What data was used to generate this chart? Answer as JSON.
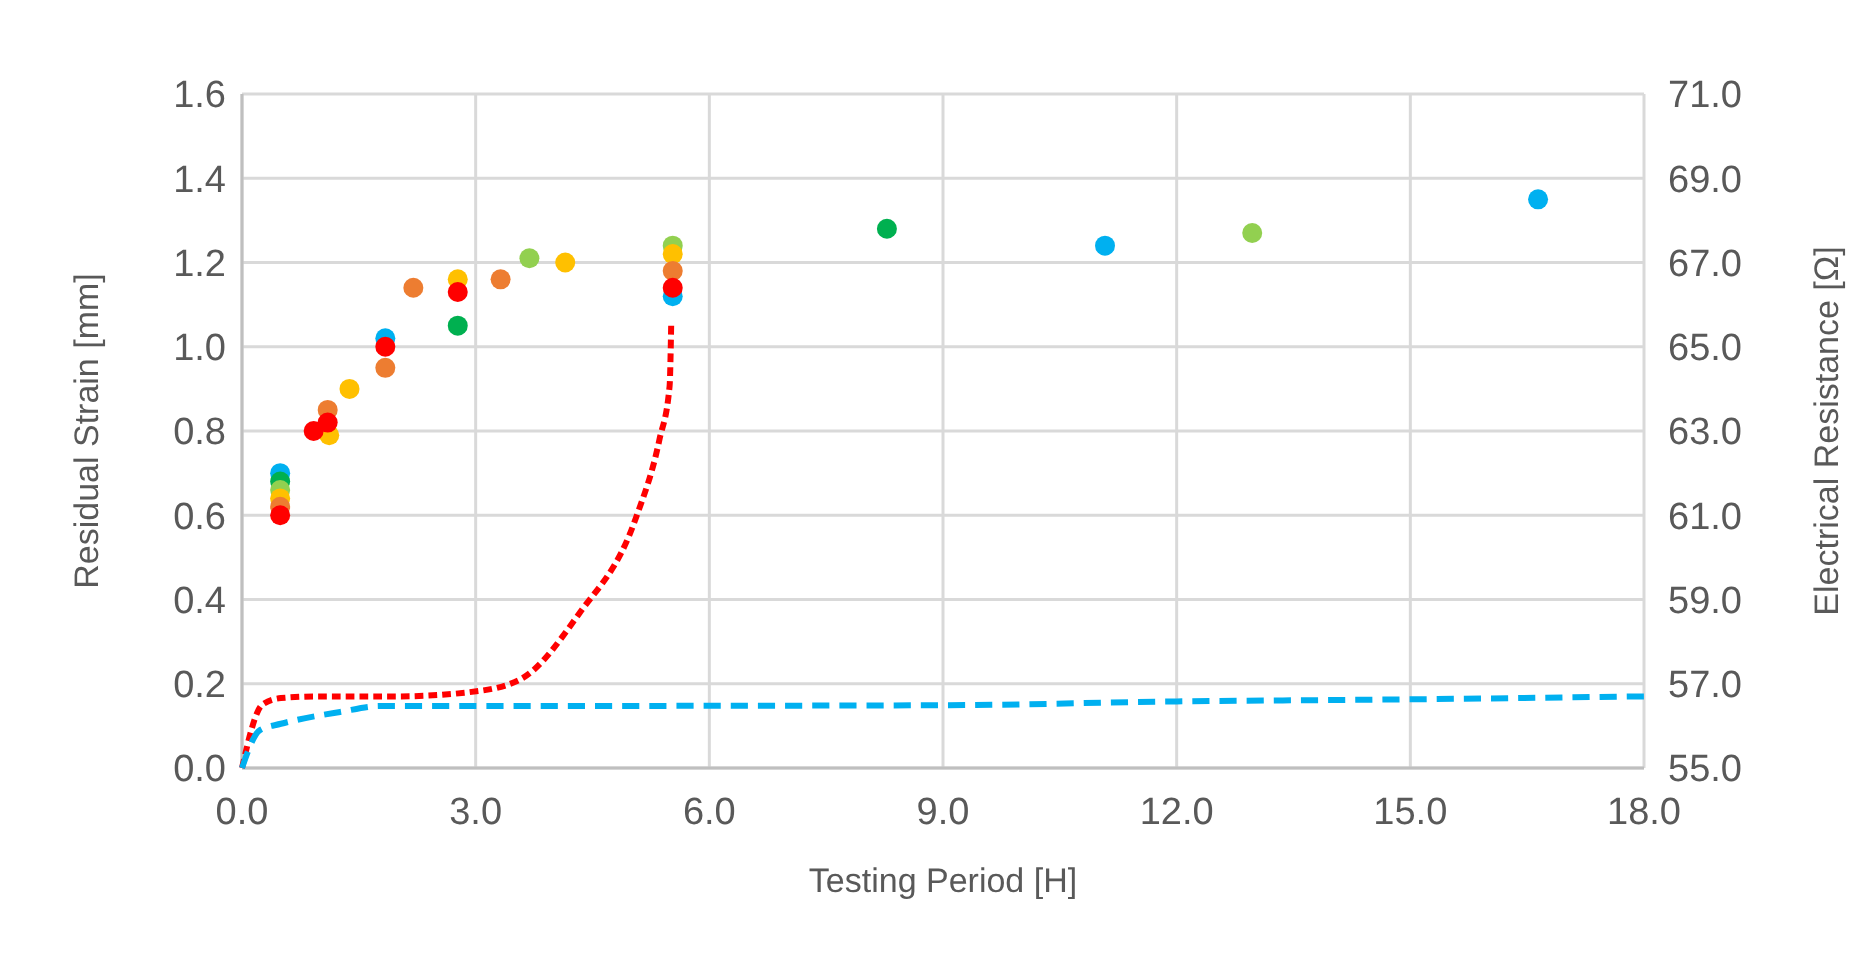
{
  "chart_data": {
    "type": "scatter",
    "xlabel": "Testing Period [H]",
    "ylabel": "Residual Strain [mm]",
    "y2label": "Electrical Resistance [Ω]",
    "xlim": [
      0,
      18
    ],
    "xticks": [
      {
        "value": 0,
        "label": "0.0"
      },
      {
        "value": 3,
        "label": "3.0"
      },
      {
        "value": 6,
        "label": "6.0"
      },
      {
        "value": 9,
        "label": "9.0"
      },
      {
        "value": 12,
        "label": "12.0"
      },
      {
        "value": 15,
        "label": "15.0"
      },
      {
        "value": 18,
        "label": "18.0"
      }
    ],
    "ylim": [
      0,
      1.6
    ],
    "yticks": [
      {
        "value": 0,
        "label": "0.0"
      },
      {
        "value": 0.2,
        "label": "0.2"
      },
      {
        "value": 0.4,
        "label": "0.4"
      },
      {
        "value": 0.6,
        "label": "0.6"
      },
      {
        "value": 0.8,
        "label": "0.8"
      },
      {
        "value": 1,
        "label": "1.0"
      },
      {
        "value": 1.2,
        "label": "1.2"
      },
      {
        "value": 1.4,
        "label": "1.4"
      },
      {
        "value": 1.6,
        "label": "1.6"
      }
    ],
    "y2lim": [
      55,
      71
    ],
    "y2ticks": [
      {
        "value": 55,
        "label": "55.0"
      },
      {
        "value": 57,
        "label": "57.0"
      },
      {
        "value": 59,
        "label": "59.0"
      },
      {
        "value": 61,
        "label": "61.0"
      },
      {
        "value": 63,
        "label": "63.0"
      },
      {
        "value": 65,
        "label": "65.0"
      },
      {
        "value": 67,
        "label": "67.0"
      },
      {
        "value": 69,
        "label": "69.0"
      },
      {
        "value": 71,
        "label": "71.0"
      }
    ],
    "grid": true,
    "marker": "circle",
    "series": [
      {
        "type": "line",
        "axis": "y2",
        "color": "#ff0000",
        "line_style": "dashed",
        "marker": "none",
        "x": [
          0,
          0.26,
          0.5,
          1,
          2,
          2.92,
          3.56,
          4.33,
          5.05,
          5.36,
          5.49,
          5.51
        ],
        "values": [
          55,
          56.5,
          56.66,
          56.7,
          56.7,
          56.8,
          57.09,
          58.67,
          60.9,
          62.8,
          64.07,
          65.5
        ]
      },
      {
        "type": "line",
        "axis": "y2",
        "color": "#00b0f0",
        "line_style": "dashed",
        "marker": "none",
        "x": [
          0,
          0.23,
          0.5,
          1.26,
          1.77,
          2.3,
          9,
          12,
          15,
          18
        ],
        "values": [
          55,
          55.9,
          56.05,
          56.33,
          56.47,
          56.47,
          56.49,
          56.58,
          56.63,
          56.7
        ]
      },
      {
        "color": "#00b0f0",
        "x": [
          0.49,
          1.84,
          5.53,
          11.08,
          16.64
        ],
        "values": [
          0.7,
          1.02,
          1.12,
          1.24,
          1.35
        ]
      },
      {
        "color": "#00b050",
        "x": [
          0.49,
          2.77,
          8.28
        ],
        "values": [
          0.68,
          1.05,
          1.28
        ]
      },
      {
        "color": "#92d050",
        "x": [
          0.49,
          3.69,
          5.53,
          12.97
        ],
        "values": [
          0.66,
          1.21,
          1.24,
          1.27
        ]
      },
      {
        "color": "#ffc000",
        "x": [
          0.49,
          1.12,
          1.38,
          2.77,
          4.15,
          5.53
        ],
        "values": [
          0.64,
          0.79,
          0.9,
          1.16,
          1.2,
          1.22
        ]
      },
      {
        "color": "#ed7d31",
        "x": [
          0.49,
          1.1,
          1.84,
          2.2,
          3.32,
          5.53
        ],
        "values": [
          0.62,
          0.85,
          0.95,
          1.14,
          1.16,
          1.18
        ]
      },
      {
        "color": "#ff0000",
        "x": [
          0.49,
          0.92,
          1.1,
          1.84,
          2.77,
          5.53
        ],
        "values": [
          0.6,
          0.8,
          0.82,
          1,
          1.13,
          1.14
        ]
      }
    ]
  }
}
